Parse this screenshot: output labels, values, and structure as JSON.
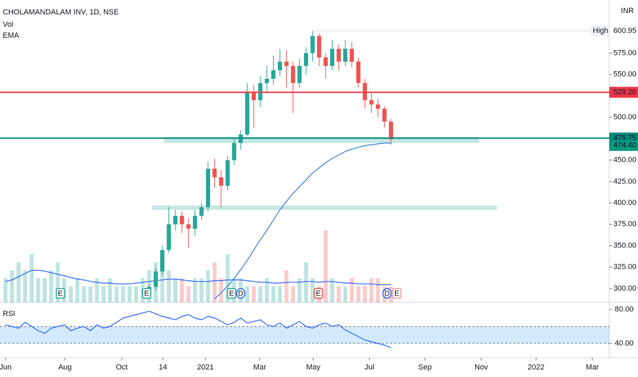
{
  "chart_data": {
    "type": "candlestick",
    "title": "CHOLAMANDALAM INV, 1D, NSE",
    "indicator_labels": [
      "Vol",
      "EMA"
    ],
    "currency": "INR",
    "x": [
      0,
      1,
      2,
      3,
      4,
      5,
      6,
      7,
      8,
      9,
      10,
      11,
      12,
      13,
      14,
      15,
      16,
      17,
      18,
      19,
      20,
      21,
      22,
      23,
      24,
      25,
      26,
      27,
      28,
      29,
      30,
      31,
      32,
      33,
      34,
      35,
      36,
      37,
      38,
      39,
      40,
      41,
      42,
      43,
      44,
      45,
      46,
      47,
      48,
      49,
      50,
      51,
      52,
      53,
      54,
      55,
      56,
      57,
      58,
      59
    ],
    "xlim": [
      -0.838,
      92.4
    ],
    "xticks": [
      {
        "value": 0,
        "label": "Jun"
      },
      {
        "value": 9.1,
        "label": "Aug"
      },
      {
        "value": 17.8,
        "label": "Oct"
      },
      {
        "value": 24.1,
        "label": "14"
      },
      {
        "value": 30.6,
        "label": "2021"
      },
      {
        "value": 38.9,
        "label": "Mar"
      },
      {
        "value": 47.1,
        "label": "May"
      },
      {
        "value": 55.7,
        "label": "Jul"
      },
      {
        "value": 64.2,
        "label": "Sep"
      },
      {
        "value": 72.8,
        "label": "Nov"
      },
      {
        "value": 81.2,
        "label": "2022"
      },
      {
        "value": 89.8,
        "label": "Mar"
      }
    ],
    "ylim": [
      284,
      637
    ],
    "yticks": [
      {
        "value": 300,
        "label": "300.00"
      },
      {
        "value": 325,
        "label": "325.00"
      },
      {
        "value": 350,
        "label": "350.00"
      },
      {
        "value": 375,
        "label": "375.00"
      },
      {
        "value": 400,
        "label": "400.00"
      },
      {
        "value": 425,
        "label": "425.00"
      },
      {
        "value": 450,
        "label": "450.00"
      },
      {
        "value": 500,
        "label": "500.00"
      },
      {
        "value": 550,
        "label": "550.00"
      },
      {
        "value": 575,
        "label": "575.00"
      }
    ],
    "up_color": "#26a69a",
    "down_color": "#ef5350",
    "open": [
      null,
      null,
      null,
      null,
      null,
      null,
      null,
      null,
      null,
      null,
      null,
      null,
      null,
      null,
      null,
      null,
      null,
      null,
      null,
      null,
      null,
      null,
      293,
      302,
      320,
      345,
      375,
      385,
      375,
      370,
      385,
      395,
      440,
      430,
      420,
      450,
      470,
      480,
      530,
      520,
      540,
      545,
      555,
      565,
      560,
      540,
      560,
      575,
      595,
      570,
      560,
      580,
      565,
      580,
      565,
      540,
      520,
      515,
      510,
      495
    ],
    "high": [
      null,
      null,
      null,
      null,
      null,
      null,
      null,
      null,
      null,
      null,
      null,
      null,
      null,
      null,
      null,
      null,
      null,
      null,
      null,
      null,
      null,
      null,
      306,
      324,
      350,
      395,
      392,
      390,
      382,
      392,
      400,
      448,
      452,
      438,
      455,
      476,
      485,
      540,
      538,
      548,
      560,
      572,
      580,
      578,
      565,
      568,
      582,
      600.95,
      598,
      575,
      590,
      585,
      590,
      588,
      570,
      545,
      528,
      522,
      513,
      498
    ],
    "low": [
      null,
      null,
      null,
      null,
      null,
      null,
      null,
      null,
      null,
      null,
      null,
      null,
      null,
      null,
      null,
      null,
      null,
      null,
      null,
      null,
      null,
      null,
      290,
      298,
      316,
      342,
      368,
      365,
      348,
      362,
      380,
      390,
      418,
      395,
      415,
      444,
      462,
      478,
      488,
      512,
      530,
      538,
      548,
      535,
      505,
      535,
      550,
      565,
      560,
      545,
      555,
      555,
      560,
      558,
      535,
      510,
      505,
      500,
      488,
      468
    ],
    "close": [
      null,
      null,
      null,
      null,
      null,
      null,
      null,
      null,
      null,
      null,
      null,
      null,
      null,
      null,
      null,
      null,
      null,
      null,
      null,
      null,
      null,
      null,
      302,
      320,
      345,
      375,
      385,
      375,
      370,
      385,
      395,
      440,
      430,
      420,
      450,
      470,
      480,
      530,
      520,
      540,
      545,
      555,
      565,
      560,
      540,
      560,
      575,
      595,
      570,
      560,
      580,
      565,
      580,
      565,
      540,
      520,
      515,
      510,
      495,
      474.4
    ],
    "volume": [
      3,
      4,
      5,
      4,
      6,
      3,
      3,
      4,
      5,
      3,
      2,
      3,
      2,
      2,
      3,
      2,
      3,
      2,
      2,
      2,
      2,
      3,
      4,
      5,
      4,
      4,
      3,
      3,
      2,
      3,
      3,
      4,
      5,
      3,
      6,
      3,
      3,
      2,
      2,
      2,
      3,
      2,
      2,
      4,
      2,
      3,
      5,
      3,
      2,
      9,
      3,
      2,
      2,
      3,
      2,
      2,
      3,
      3,
      2,
      2
    ],
    "volume_ma": [
      2.6,
      2.8,
      3.2,
      3.6,
      4,
      4,
      3.9,
      3.7,
      3.5,
      3.3,
      3.1,
      2.9,
      2.8,
      2.6,
      2.5,
      2.4,
      2.4,
      2.3,
      2.3,
      2.3,
      2.4,
      2.5,
      2.6,
      2.7,
      2.8,
      2.9,
      2.9,
      2.8,
      2.7,
      2.6,
      2.6,
      2.6,
      2.7,
      2.7,
      2.8,
      2.8,
      2.8,
      2.7,
      2.6,
      2.5,
      2.5,
      2.4,
      2.4,
      2.5,
      2.5,
      2.5,
      2.6,
      2.6,
      2.5,
      2.6,
      2.6,
      2.5,
      2.4,
      2.4,
      2.3,
      2.3,
      2.3,
      2.2,
      2.2,
      2.2
    ],
    "ema": [
      null,
      null,
      null,
      null,
      null,
      null,
      null,
      null,
      null,
      null,
      null,
      null,
      null,
      null,
      null,
      null,
      null,
      null,
      null,
      null,
      null,
      null,
      null,
      null,
      null,
      null,
      null,
      null,
      null,
      null,
      null,
      null,
      288,
      295,
      303,
      312,
      322,
      333,
      345,
      357,
      368,
      380,
      392,
      402,
      411,
      419,
      427,
      435,
      441,
      447,
      452,
      456,
      460,
      463,
      465,
      467,
      468,
      469,
      470,
      470
    ],
    "ema_color": "#2f7fe0",
    "high_marker": {
      "label": "High",
      "value": 600.95,
      "value_label": "600.95"
    },
    "price_tag": {
      "value": 474.4,
      "label": "474.40"
    },
    "hlines": [
      {
        "value": 529.2,
        "label": "529.20",
        "color": "#f23645"
      },
      {
        "value": 475.75,
        "label": "475.75",
        "color": "#00897b"
      }
    ],
    "zones": [
      {
        "x": [
          24.3,
          72.5
        ],
        "y": [
          470,
          477
        ]
      },
      {
        "x": [
          22.4,
          75.2
        ],
        "y": [
          392,
          397
        ]
      }
    ],
    "events": [
      {
        "label": "E",
        "x": 8.4,
        "color": "#26a69a"
      },
      {
        "label": "E",
        "x": 21.6,
        "color": "#26a69a"
      },
      {
        "label": "E",
        "x": 34.6,
        "color": "#26a69a"
      },
      {
        "label": "D",
        "x": 36,
        "color": "#2962ff"
      },
      {
        "label": "E",
        "x": 47.9,
        "color": "#ef5350"
      },
      {
        "label": "D",
        "x": 58.4,
        "color": "#2962ff"
      },
      {
        "label": "E",
        "x": 59.9,
        "color": "#ef9a9a"
      }
    ],
    "rsi": {
      "label": "RSI",
      "values": [
        62,
        60,
        58,
        65,
        60,
        55,
        52,
        58,
        60,
        62,
        55,
        58,
        60,
        55,
        62,
        58,
        60,
        65,
        70,
        72,
        74,
        76,
        78,
        75,
        72,
        70,
        68,
        72,
        74,
        70,
        68,
        72,
        70,
        66,
        62,
        65,
        70,
        64,
        66,
        68,
        62,
        60,
        64,
        58,
        62,
        66,
        60,
        58,
        62,
        64,
        60,
        62,
        56,
        52,
        48,
        44,
        42,
        40,
        38,
        35
      ],
      "ylim": [
        23,
        87
      ],
      "yticks": [
        {
          "value": 80,
          "label": "80.00"
        },
        {
          "value": 40,
          "label": "40.00"
        }
      ],
      "band": [
        40,
        60
      ],
      "color": "#2962ff"
    }
  }
}
